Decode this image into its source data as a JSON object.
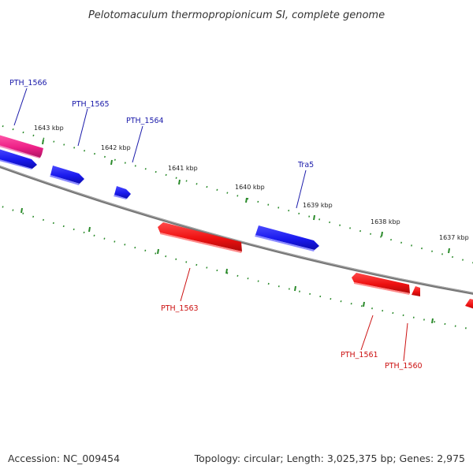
{
  "title": "Pelotomaculum thermopropionicum SI, complete genome",
  "footer": {
    "accession": "Accession: NC_009454",
    "summary": "Topology: circular; Length: 3,025,375 bp; Genes: 2,975"
  },
  "colors": {
    "background": "#ffffff",
    "backbone": "#777777",
    "tick": "#2a8a2a",
    "forward_gene": "#1a1aee",
    "reverse_gene": "#ee1111",
    "special_gene": "#ee2288",
    "forward_label": "#1a1aaa",
    "reverse_label": "#cc1111"
  },
  "ticks": [
    {
      "label": "1643 kbp"
    },
    {
      "label": "1642 kbp"
    },
    {
      "label": "1641 kbp"
    },
    {
      "label": "1640 kbp"
    },
    {
      "label": "1639 kbp"
    },
    {
      "label": "1638 kbp"
    },
    {
      "label": "1637 kbp"
    }
  ],
  "genes": [
    {
      "name": "PTH_1566",
      "strand": "forward",
      "color": "#ee2288"
    },
    {
      "name": "PTH_1565",
      "strand": "forward",
      "color": "#1a1aee"
    },
    {
      "name": "PTH_1564",
      "strand": "forward",
      "color": "#1a1aee"
    },
    {
      "name": "Tra5",
      "strand": "forward",
      "color": "#1a1aee"
    },
    {
      "name": "PTH_1563",
      "strand": "reverse",
      "color": "#ee1111"
    },
    {
      "name": "PTH_1561",
      "strand": "reverse",
      "color": "#ee1111"
    },
    {
      "name": "PTH_1560",
      "strand": "reverse",
      "color": "#ee1111"
    }
  ]
}
